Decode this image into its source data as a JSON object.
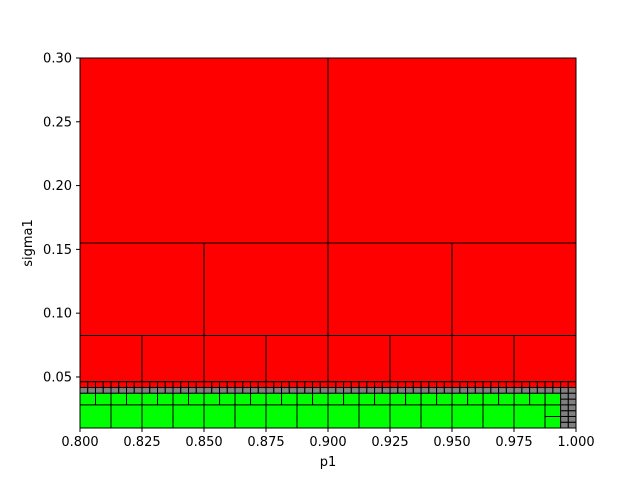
{
  "chart_data": {
    "type": "heatmap",
    "title": "",
    "xlabel": "p1",
    "ylabel": "sigma1",
    "xlim": [
      0.8,
      1.0
    ],
    "ylim": [
      0.01,
      0.3
    ],
    "xticks": [
      "0.800",
      "0.825",
      "0.850",
      "0.875",
      "0.900",
      "0.925",
      "0.950",
      "0.975",
      "1.000"
    ],
    "yticks": [
      "0.05",
      "0.10",
      "0.15",
      "0.20",
      "0.25",
      "0.30"
    ],
    "colors": {
      "unsafe": "#ff0000",
      "safe": "#00ff00",
      "unknown": "#808080",
      "edge": "#000000"
    },
    "regions": [
      {
        "state": "unsafe",
        "x": [
          0.8,
          0.9
        ],
        "y": [
          0.155,
          0.3
        ]
      },
      {
        "state": "unsafe",
        "x": [
          0.9,
          1.0
        ],
        "y": [
          0.155,
          0.3
        ]
      },
      {
        "state": "unsafe",
        "x": [
          0.8,
          0.85
        ],
        "y": [
          0.0825,
          0.155
        ]
      },
      {
        "state": "unsafe",
        "x": [
          0.85,
          0.9
        ],
        "y": [
          0.0825,
          0.155
        ]
      },
      {
        "state": "unsafe",
        "x": [
          0.9,
          0.95
        ],
        "y": [
          0.0825,
          0.155
        ]
      },
      {
        "state": "unsafe",
        "x": [
          0.95,
          1.0
        ],
        "y": [
          0.0825,
          0.155
        ]
      },
      {
        "state": "unsafe",
        "x": [
          0.8,
          0.825
        ],
        "y": [
          0.04625,
          0.0825
        ]
      },
      {
        "state": "unsafe",
        "x": [
          0.825,
          0.85
        ],
        "y": [
          0.04625,
          0.0825
        ]
      },
      {
        "state": "unsafe",
        "x": [
          0.85,
          0.875
        ],
        "y": [
          0.04625,
          0.0825
        ]
      },
      {
        "state": "unsafe",
        "x": [
          0.875,
          0.9
        ],
        "y": [
          0.04625,
          0.0825
        ]
      },
      {
        "state": "unsafe",
        "x": [
          0.9,
          0.925
        ],
        "y": [
          0.04625,
          0.0825
        ]
      },
      {
        "state": "unsafe",
        "x": [
          0.925,
          0.95
        ],
        "y": [
          0.04625,
          0.0825
        ]
      },
      {
        "state": "unsafe",
        "x": [
          0.95,
          0.975
        ],
        "y": [
          0.04625,
          0.0825
        ]
      },
      {
        "state": "unsafe",
        "x": [
          0.975,
          1.0
        ],
        "y": [
          0.04625,
          0.0825
        ]
      }
    ],
    "bands": [
      {
        "state": "unsafe",
        "y": [
          0.0417,
          0.04625
        ],
        "x": [
          0.8,
          0.9938
        ],
        "step": 0.003125
      },
      {
        "state": "unsafe",
        "y": [
          0.0417,
          0.04625
        ],
        "x": [
          0.9938,
          1.0
        ],
        "step": 0.0031
      },
      {
        "state": "unknown",
        "y": [
          0.0372,
          0.0417
        ],
        "x": [
          0.8,
          0.9938
        ],
        "step": 0.003125
      },
      {
        "state": "unknown",
        "y": [
          0.0372,
          0.0417
        ],
        "x": [
          0.9938,
          1.0
        ],
        "step": 0.0031
      },
      {
        "state": "safe",
        "y": [
          0.0281,
          0.0372
        ],
        "x": [
          0.8,
          0.9938
        ],
        "step": 0.00625
      },
      {
        "state": "unknown",
        "y": [
          0.0281,
          0.0372
        ],
        "x": [
          0.9938,
          1.0
        ],
        "step": 0.0031
      },
      {
        "state": "safe",
        "y": [
          0.01,
          0.0281
        ],
        "x": [
          0.8,
          0.9875
        ],
        "step": 0.0125
      },
      {
        "state": "safe",
        "y": [
          0.019,
          0.0281
        ],
        "x": [
          0.9875,
          0.9938
        ],
        "step": 0.00625
      },
      {
        "state": "safe",
        "y": [
          0.01,
          0.019
        ],
        "x": [
          0.9875,
          0.9938
        ],
        "step": 0.00625
      },
      {
        "state": "unknown",
        "y": [
          0.01,
          0.0281
        ],
        "x": [
          0.9938,
          1.0
        ],
        "step": 0.0031
      }
    ]
  }
}
